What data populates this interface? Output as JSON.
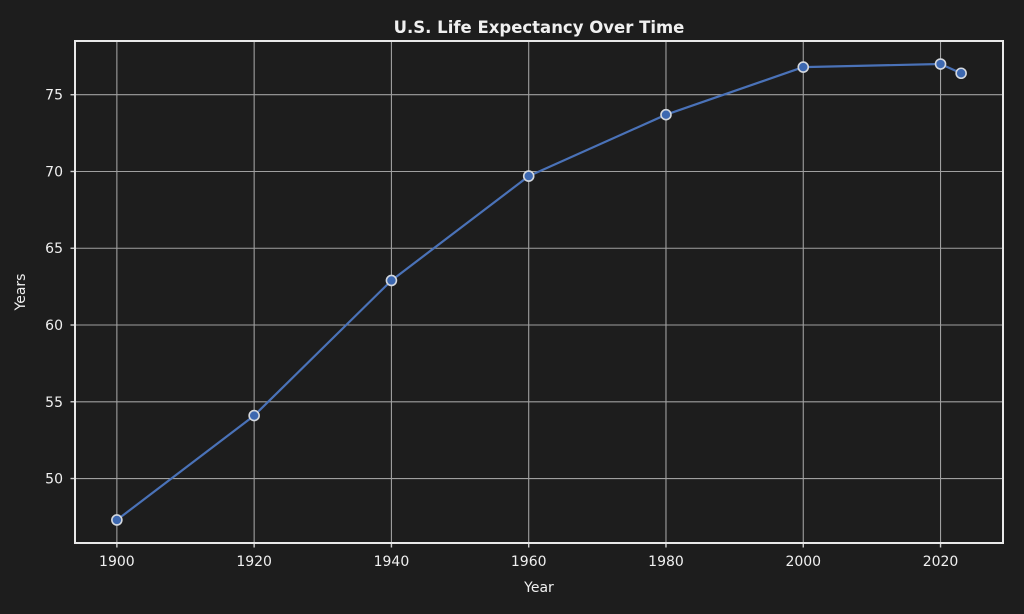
{
  "figure": {
    "background": "#1d1d1d",
    "axes_background": "#1d1d1d",
    "text_color": "#f0f0f0",
    "grid_color": "#a0a0a0",
    "spine_color": "#e8e8e8",
    "tick_color": "#d0d0d0"
  },
  "chart_data": {
    "type": "line",
    "title": "U.S. Life Expectancy Over Time",
    "xlabel": "Year",
    "ylabel": "Years",
    "x": [
      1900,
      1920,
      1940,
      1960,
      1980,
      2000,
      2020,
      2023
    ],
    "values": [
      47.3,
      54.1,
      62.9,
      69.7,
      73.7,
      76.8,
      77.0,
      76.4
    ],
    "series": [
      {
        "name": "U.S. life expectancy",
        "values": [
          47.3,
          54.1,
          62.9,
          69.7,
          73.7,
          76.8,
          77.0,
          76.4
        ]
      }
    ],
    "xticks": [
      1900,
      1920,
      1940,
      1960,
      1980,
      2000,
      2020
    ],
    "yticks": [
      50,
      55,
      60,
      65,
      70,
      75
    ],
    "xlim": [
      1893.9,
      2029.1
    ],
    "ylim": [
      45.8,
      78.5
    ],
    "grid": true,
    "legend_position": "none",
    "line_color": "#4a72b8",
    "marker_fill": "#3d68b0",
    "marker_edge": "#d4d8de"
  }
}
